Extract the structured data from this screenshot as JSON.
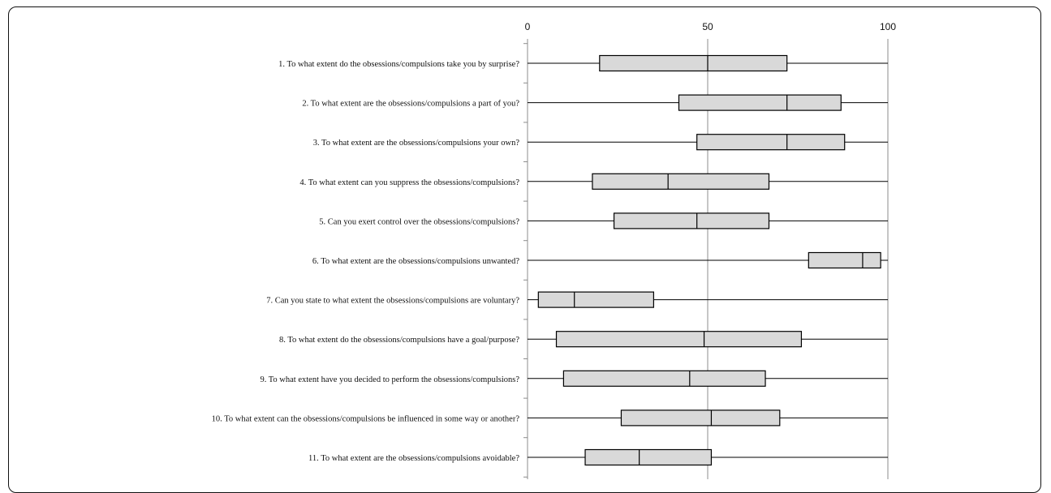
{
  "chart_data": {
    "type": "boxplot",
    "title": "",
    "xlabel": "",
    "ylabel": "",
    "xlim": [
      0,
      100
    ],
    "x_ticks": [
      "0",
      "50",
      "100"
    ],
    "orientation": "horizontal",
    "grid": "vertical lines at 50 and 100",
    "colors": {
      "box_fill": "#d9d9d9",
      "line": "#000000"
    },
    "categories": [
      "1. To what extent do the obsessions/compulsions take you by surprise?",
      "2. To what extent are the obsessions/compulsions a part of you?",
      "3. To what extent are the obsessions/compulsions your own?",
      "4. To what extent can you suppress the obsessions/compulsions?",
      "5. Can you exert control over the obsessions/compulsions?",
      "6. To what extent are the obsessions/compulsions unwanted?",
      "7. Can you state to what extent the obsessions/compulsions are voluntary?",
      "8. To what extent do the obsessions/compulsions have a goal/purpose?",
      "9. To what extent have you decided to perform the obsessions/compulsions?",
      "10. To what extent can the obsessions/compulsions be influenced in some way or another?",
      "11. To what extent are the obsessions/compulsions avoidable?"
    ],
    "boxes": [
      {
        "min": 0,
        "q1": 20,
        "median": 50,
        "q3": 72,
        "max": 100
      },
      {
        "min": 0,
        "q1": 42,
        "median": 72,
        "q3": 87,
        "max": 100
      },
      {
        "min": 0,
        "q1": 47,
        "median": 72,
        "q3": 88,
        "max": 100
      },
      {
        "min": 0,
        "q1": 18,
        "median": 39,
        "q3": 67,
        "max": 100
      },
      {
        "min": 0,
        "q1": 24,
        "median": 47,
        "q3": 67,
        "max": 100
      },
      {
        "min": 0,
        "q1": 78,
        "median": 93,
        "q3": 98,
        "max": 100
      },
      {
        "min": 0,
        "q1": 3,
        "median": 13,
        "q3": 35,
        "max": 100
      },
      {
        "min": 0,
        "q1": 8,
        "median": 49,
        "q3": 76,
        "max": 100
      },
      {
        "min": 0,
        "q1": 10,
        "median": 45,
        "q3": 66,
        "max": 100
      },
      {
        "min": 0,
        "q1": 26,
        "median": 51,
        "q3": 70,
        "max": 100
      },
      {
        "min": 0,
        "q1": 16,
        "median": 31,
        "q3": 51,
        "max": 100
      }
    ]
  }
}
